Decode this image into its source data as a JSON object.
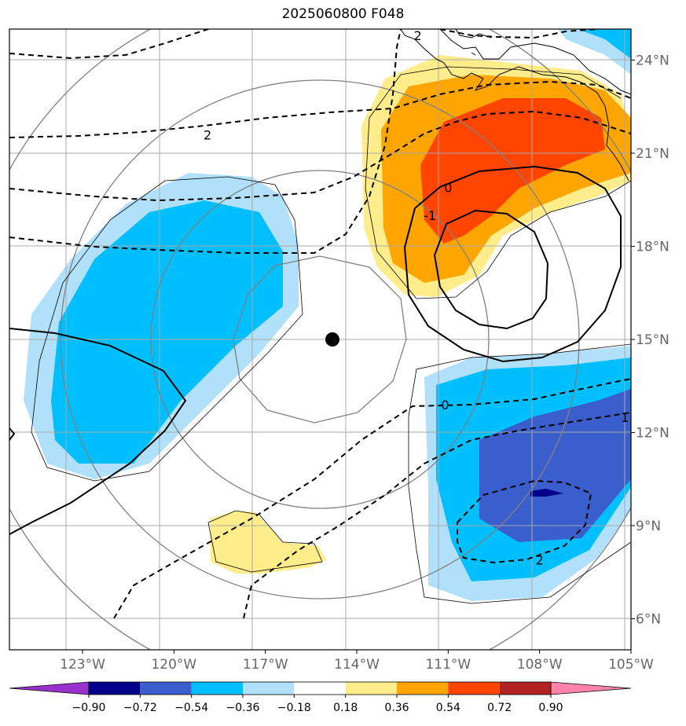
{
  "title": "2025060800 F048",
  "map": {
    "lon_range": [
      -125.4,
      -105.0
    ],
    "lat_range": [
      5.0,
      25.0
    ],
    "lon_ticks": [
      {
        "label": "123°W",
        "lon": -123
      },
      {
        "label": "120°W",
        "lon": -120
      },
      {
        "label": "117°W",
        "lon": -117
      },
      {
        "label": "114°W",
        "lon": -114
      },
      {
        "label": "111°W",
        "lon": -111
      },
      {
        "label": "108°W",
        "lon": -108
      },
      {
        "label": "105°W",
        "lon": -105
      }
    ],
    "lat_ticks": [
      {
        "label": "24°N",
        "lat": 24
      },
      {
        "label": "21°N",
        "lat": 21
      },
      {
        "label": "18°N",
        "lat": 18
      },
      {
        "label": "15°N",
        "lat": 15
      },
      {
        "label": "12°N",
        "lat": 12
      },
      {
        "label": "9°N",
        "lat": 9
      },
      {
        "label": "6°N",
        "lat": 6
      }
    ],
    "storm_center": {
      "lon": -114.8,
      "lat": 15.0
    },
    "contour_labels": [
      {
        "text": "2",
        "lon": -112.0,
        "lat": 24.8
      },
      {
        "text": "2",
        "lon": -118.9,
        "lat": 21.6
      },
      {
        "text": "0",
        "lon": -111.0,
        "lat": 19.9
      },
      {
        "text": "-1",
        "lon": -111.6,
        "lat": 19.0
      },
      {
        "text": "0",
        "lon": -111.1,
        "lat": 12.9
      },
      {
        "text": "1",
        "lon": -105.2,
        "lat": 12.5
      },
      {
        "text": "2",
        "lon": -108.0,
        "lat": 7.9
      }
    ]
  },
  "colorbar": {
    "levels": [
      "−0.90",
      "−0.72",
      "−0.54",
      "−0.36",
      "−0.18",
      "0.18",
      "0.36",
      "0.54",
      "0.72",
      "0.90"
    ],
    "colors": [
      "#9932cc",
      "#00008b",
      "#3a5fcd",
      "#00bfff",
      "#b0e0fa",
      "#ffffff",
      "#ffec8b",
      "#ffa500",
      "#ff4500",
      "#b22222",
      "#ff82ab"
    ]
  }
}
